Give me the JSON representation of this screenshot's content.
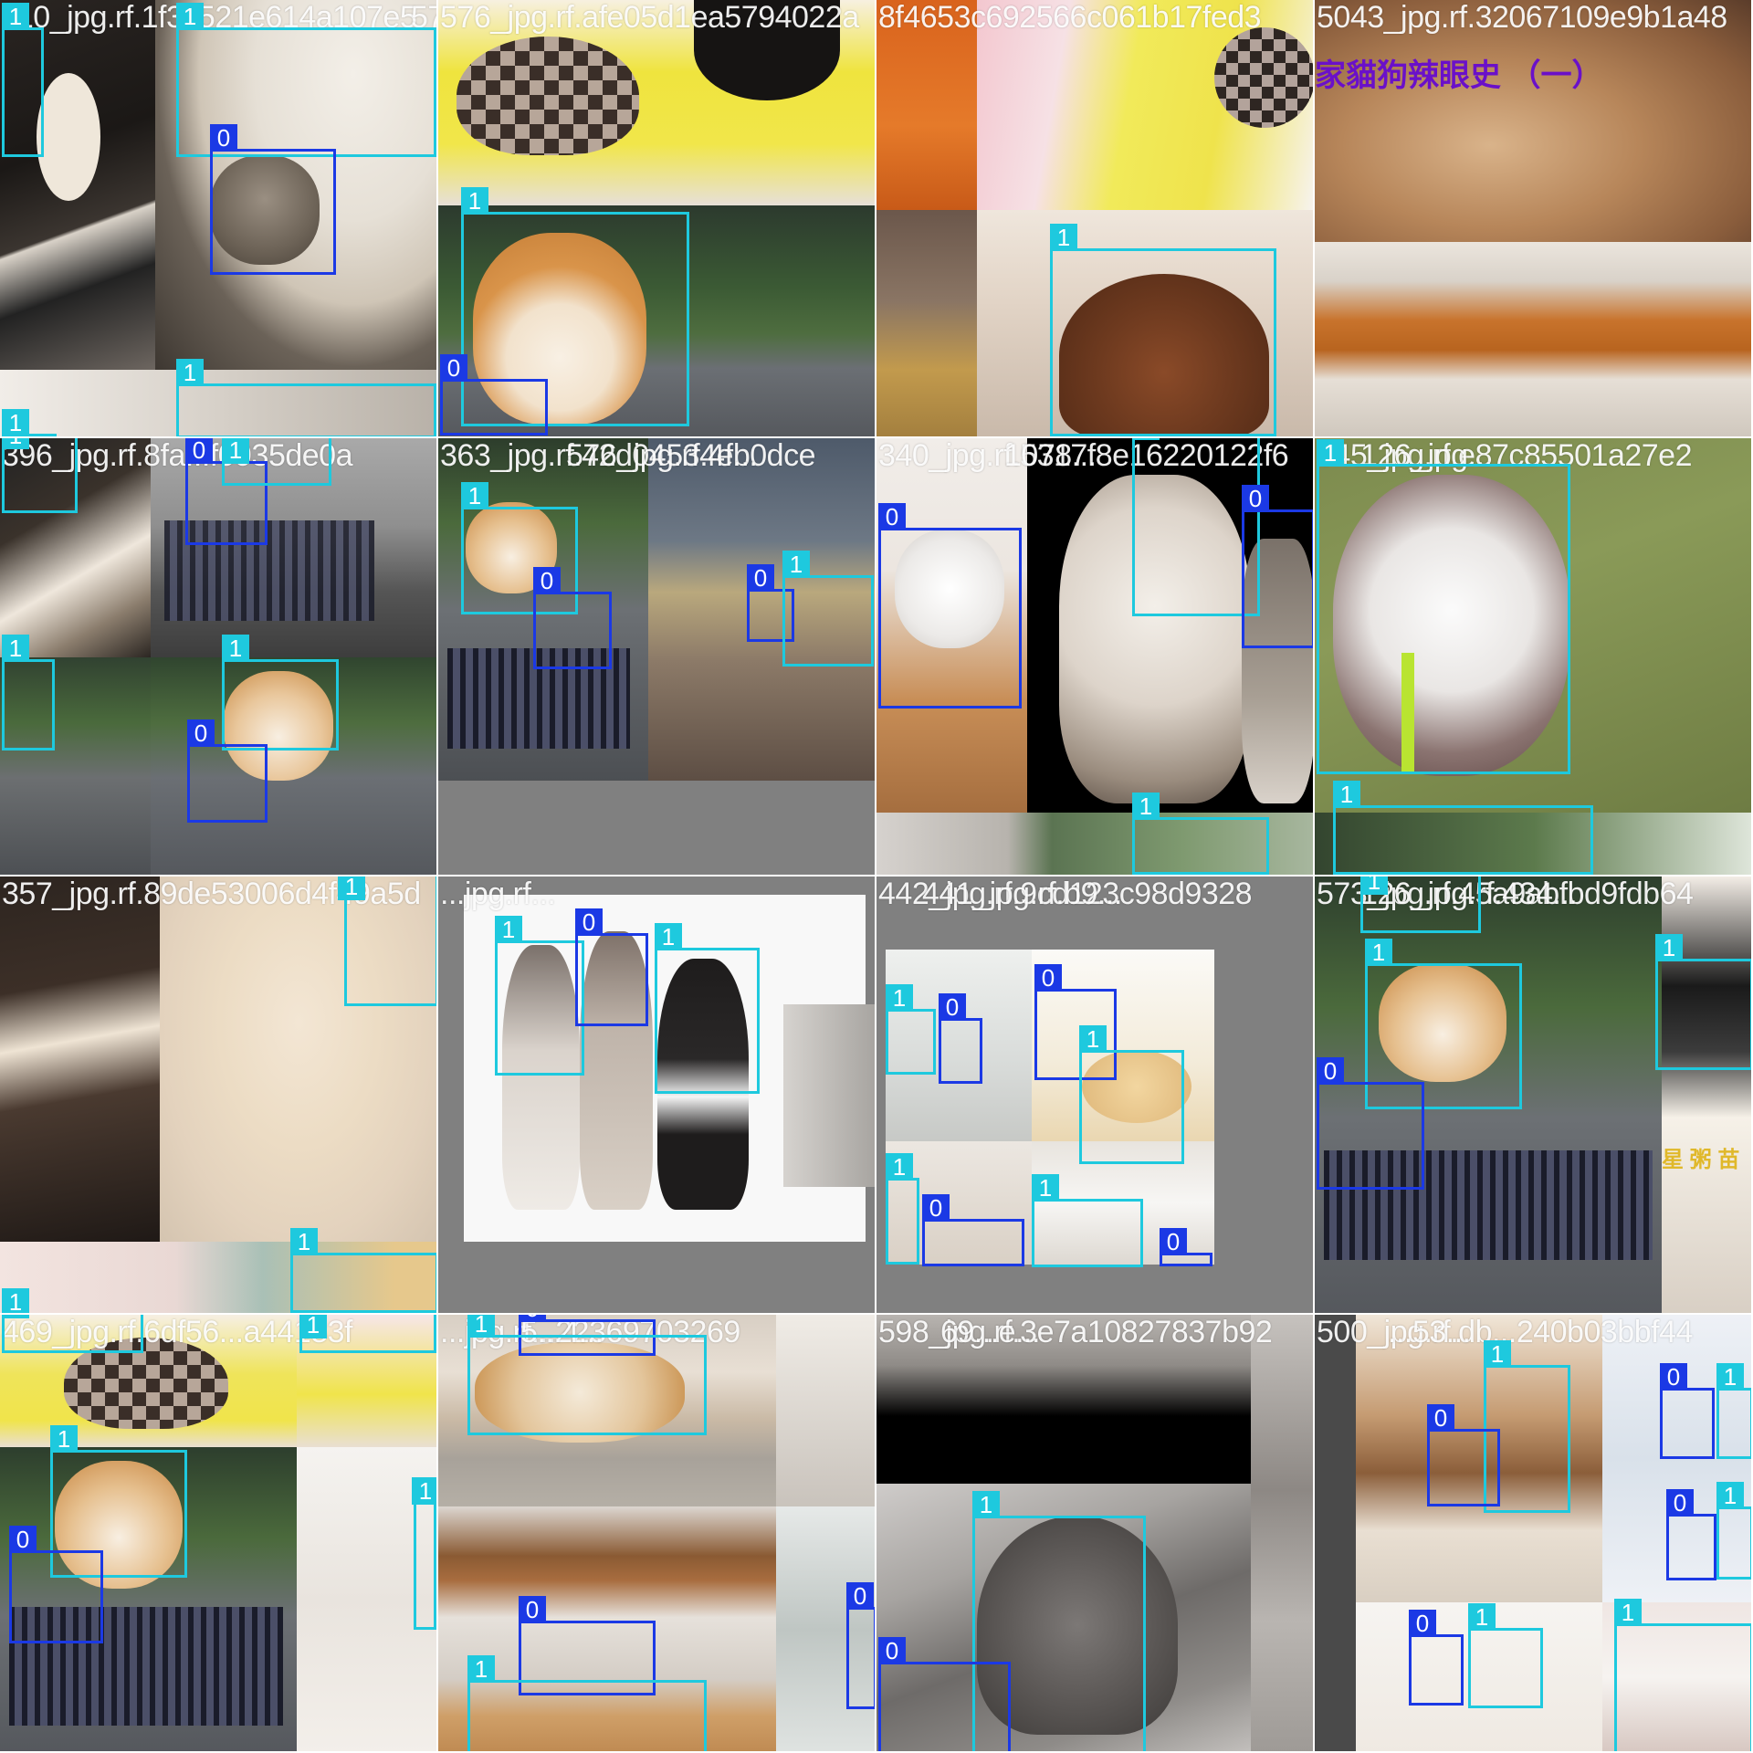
{
  "colors": {
    "class_0": "#1B39E5",
    "class_1": "#1EC9DE",
    "padding_gray": "#808080",
    "filename_text": "#ffffff"
  },
  "mosaic": {
    "grid": "4x4",
    "tiles": [
      {
        "filename": "110_jpg.rf.1f3c521e614a107e5",
        "overlay": "576_jpg.rf.afe05d1ea5794022a",
        "labels": [
          "1",
          "0",
          "1",
          "1",
          "1"
        ],
        "scene": "black-and-white dog hugging tabby cat on bed"
      },
      {
        "filename": "576_jpg.rf.afe05d1ea5794022a",
        "labels": [
          "1",
          "0"
        ],
        "scene": "plush toy with checkered cap above smiling shiba inu on road"
      },
      {
        "filename": "8f4653c692566c061b17fed3",
        "labels": [
          "1"
        ],
        "scene": "brown dog sleeping on cushion"
      },
      {
        "filename": "5043_jpg.rf.32067109e9b1a48",
        "caption_text": "家貓狗辣眼史 （一）",
        "labels": [],
        "scene": "close-up of brown dog fur and corduroy sofa"
      },
      {
        "filename": "396_jpg.rf.8fa...f0935de0a",
        "labels": [
          "1",
          "0",
          "1",
          "1",
          "1",
          "0"
        ],
        "scene": "cat in bicycle basket with shiba inu"
      },
      {
        "filename": "363_jpg.rf.42d04534eb0dce",
        "overlay": "576_jpg.rf.4f...",
        "labels": [
          "1",
          "0",
          "0",
          "1"
        ],
        "scene": "shiba and cat in basket, cat and schnauzer on sofa"
      },
      {
        "filename": "340_jpg.rf.5317f8e16220122f6",
        "overlay": "1078...",
        "labels": [
          "0",
          "1",
          "0",
          "1"
        ],
        "scene": "white fluffy kitten and husky with tabby cat"
      },
      {
        "filename": "345_jpg.rf.e87c85501a27e2",
        "overlay": "126_jpg...",
        "labels": [
          "1",
          "1"
        ],
        "scene": "fluffy dog with green leash on grass"
      },
      {
        "filename": "357_jpg.rf.89de53006d4f49a5d",
        "labels": [
          "1",
          "1",
          "1"
        ],
        "scene": "cream fluffy puppy on carpet"
      },
      {
        "filename": "...jpg.rf...",
        "labels": [
          "1",
          "0",
          "1"
        ],
        "scene": "two french bulldogs and a siamese cat on white background"
      },
      {
        "filename": "442_jpg.rf.9cd123c98d9328",
        "overlay": "441_jpg.rf.b9...",
        "labels": [
          "1",
          "0",
          "0",
          "1",
          "1",
          "0",
          "1",
          "0"
        ],
        "scene": "collage of kittens and puppies"
      },
      {
        "filename": "573_jpg.rf.45a9abfbd9fdb64",
        "overlay": "126_jpg.rf.434...",
        "caption_text": "星 粥 苗",
        "labels": [
          "1",
          "1",
          "0",
          "1"
        ],
        "scene": "shiba inu with cat in bicycle basket"
      },
      {
        "filename": "469_jpg.rf.6df56...a44183f",
        "labels": [
          "1",
          "1",
          "1",
          "0",
          "1"
        ],
        "scene": "plush toy, shiba with cat in basket, white kitten"
      },
      {
        "filename": "...jpg.rf...22369703269",
        "overlay": "5...4...",
        "labels": [
          "0",
          "1",
          "0",
          "1",
          "0"
        ],
        "scene": "sleeping shiba on gray sofa, kitten"
      },
      {
        "filename": "598_jpg.rf.3e7a10827837b92",
        "overlay": "69...e...",
        "labels": [
          "1",
          "0",
          "0"
        ],
        "scene": "grayscale sleeping dog and cat"
      },
      {
        "filename": "500_jpg.rf.db...240b03bbf44",
        "overlay": "...53...",
        "labels": [
          "1",
          "0",
          "0",
          "1",
          "0",
          "1",
          "0",
          "1",
          "1"
        ],
        "scene": "dog and cat sleeping, kittens and puppies collage"
      }
    ]
  }
}
